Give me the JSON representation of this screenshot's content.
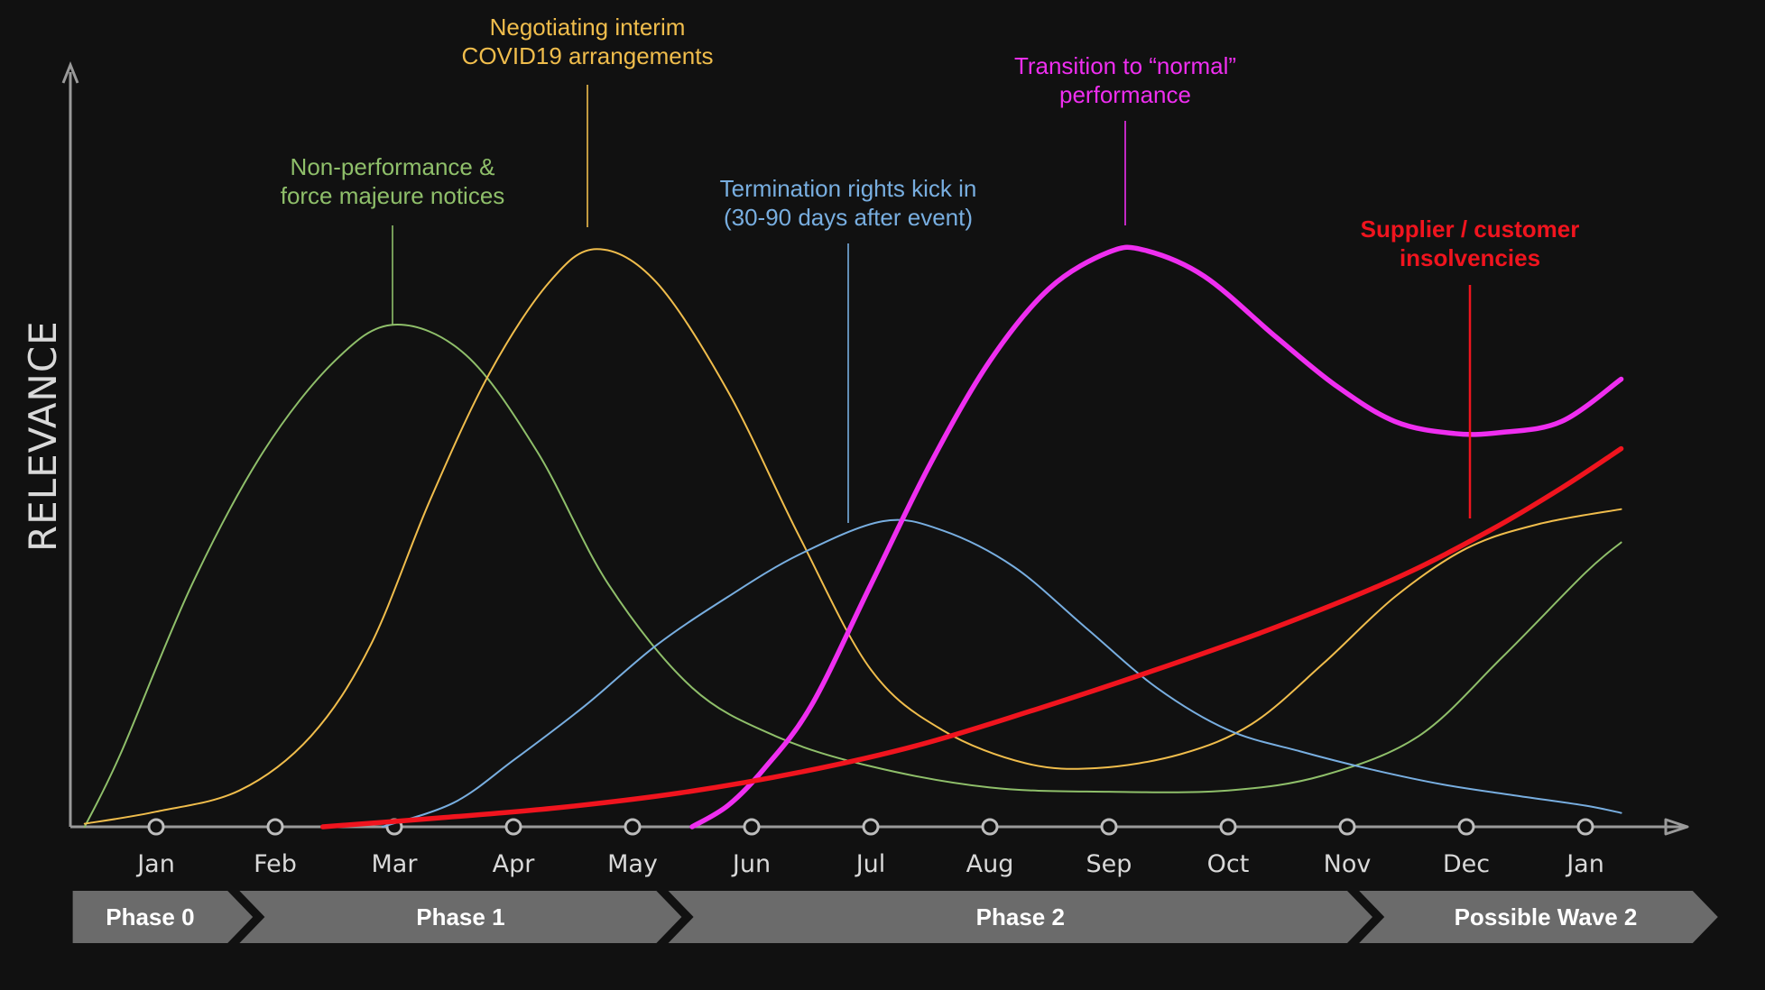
{
  "chart_data": {
    "type": "line",
    "title": "",
    "xlabel": "",
    "ylabel": "RELEVANCE",
    "x_categories": [
      "Jan",
      "Feb",
      "Mar",
      "Apr",
      "May",
      "Jun",
      "Jul",
      "Aug",
      "Sep",
      "Oct",
      "Nov",
      "Dec",
      "Jan"
    ],
    "x_range": [
      0,
      13.5
    ],
    "y_range": [
      0,
      100
    ],
    "grid": false,
    "legend": "none",
    "series": [
      {
        "name": "Non-performance & force majeure notices",
        "color": "#8fbf6a",
        "weight": "thin",
        "points": [
          [
            -0.6,
            0
          ],
          [
            -0.3,
            12
          ],
          [
            0.3,
            40
          ],
          [
            0.9,
            62
          ],
          [
            1.5,
            77
          ],
          [
            2.0,
            83
          ],
          [
            2.6,
            78
          ],
          [
            3.2,
            62
          ],
          [
            3.8,
            40
          ],
          [
            4.5,
            23
          ],
          [
            5.2,
            15
          ],
          [
            6.0,
            10
          ],
          [
            7.0,
            6.5
          ],
          [
            8.0,
            5.8
          ],
          [
            9.0,
            6
          ],
          [
            9.8,
            8.5
          ],
          [
            10.6,
            15
          ],
          [
            11.3,
            28
          ],
          [
            12.0,
            42
          ],
          [
            12.3,
            47
          ]
        ]
      },
      {
        "name": "Negotiating interim COVID19 arrangements",
        "color": "#f0bd4c",
        "weight": "thin",
        "points": [
          [
            -0.6,
            0.5
          ],
          [
            0.0,
            2.5
          ],
          [
            0.7,
            6
          ],
          [
            1.3,
            15
          ],
          [
            1.8,
            30
          ],
          [
            2.3,
            54
          ],
          [
            2.8,
            75
          ],
          [
            3.3,
            90
          ],
          [
            3.7,
            95.5
          ],
          [
            4.2,
            90
          ],
          [
            4.8,
            72
          ],
          [
            5.4,
            48
          ],
          [
            6.0,
            26
          ],
          [
            6.6,
            16
          ],
          [
            7.3,
            10.5
          ],
          [
            7.9,
            9.7
          ],
          [
            8.6,
            12
          ],
          [
            9.2,
            17
          ],
          [
            9.8,
            27
          ],
          [
            10.4,
            38
          ],
          [
            11.0,
            46
          ],
          [
            11.6,
            50
          ],
          [
            12.3,
            52.5
          ]
        ]
      },
      {
        "name": "Termination rights kick in (30-90 days after event)",
        "color": "#78aee0",
        "weight": "thin",
        "points": [
          [
            1.9,
            0
          ],
          [
            2.5,
            4
          ],
          [
            3.0,
            11
          ],
          [
            3.6,
            20
          ],
          [
            4.2,
            30
          ],
          [
            4.8,
            38
          ],
          [
            5.4,
            45
          ],
          [
            6.1,
            50.5
          ],
          [
            6.6,
            49
          ],
          [
            7.2,
            43
          ],
          [
            7.8,
            33
          ],
          [
            8.4,
            23
          ],
          [
            9.0,
            16
          ],
          [
            9.6,
            12.5
          ],
          [
            10.2,
            9.5
          ],
          [
            10.8,
            7
          ],
          [
            11.4,
            5.2
          ],
          [
            12.0,
            3.5
          ],
          [
            12.3,
            2.3
          ]
        ]
      },
      {
        "name": "Transition to “normal” performance",
        "color": "#ef2ef0",
        "weight": "thick",
        "points": [
          [
            4.5,
            0
          ],
          [
            4.8,
            3.5
          ],
          [
            5.1,
            9.5
          ],
          [
            5.5,
            20
          ],
          [
            6.0,
            40
          ],
          [
            6.5,
            60
          ],
          [
            7.0,
            77
          ],
          [
            7.5,
            89
          ],
          [
            8.0,
            95
          ],
          [
            8.3,
            95.3
          ],
          [
            8.8,
            91
          ],
          [
            9.4,
            81
          ],
          [
            9.9,
            73
          ],
          [
            10.4,
            67
          ],
          [
            10.9,
            65
          ],
          [
            11.3,
            65.2
          ],
          [
            11.8,
            67
          ],
          [
            12.3,
            74
          ]
        ]
      },
      {
        "name": "Supplier / customer insolvencies",
        "color": "#f0141e",
        "weight": "thick",
        "points": [
          [
            1.4,
            0
          ],
          [
            2.4,
            1.5
          ],
          [
            3.4,
            3.2
          ],
          [
            4.4,
            5.6
          ],
          [
            5.4,
            9
          ],
          [
            6.4,
            13.5
          ],
          [
            7.4,
            19.5
          ],
          [
            8.4,
            26
          ],
          [
            9.4,
            33
          ],
          [
            10.4,
            41
          ],
          [
            11.2,
            49
          ],
          [
            11.8,
            56
          ],
          [
            12.3,
            62.5
          ]
        ]
      }
    ],
    "annotations": [
      {
        "lines": [
          "Non-performance &",
          "force majeure notices"
        ],
        "color": "#8fbf6a",
        "points_to": "Mar"
      },
      {
        "lines": [
          "Negotiating interim",
          "COVID19 arrangements"
        ],
        "color": "#f0bd4c",
        "points_to": "late Apr"
      },
      {
        "lines": [
          "Termination rights kick in",
          "(30-90 days after event)"
        ],
        "color": "#78aee0",
        "points_to": "Jul"
      },
      {
        "lines": [
          "Transition to “normal”",
          "performance"
        ],
        "color": "#ef2ef0",
        "points_to": "Sep"
      },
      {
        "lines": [
          "Supplier / customer",
          "insolvencies"
        ],
        "color": "#f0141e",
        "points_to": "Dec",
        "bold": true
      }
    ],
    "phases": [
      {
        "label": "Phase 0",
        "from": -0.7,
        "to": 0.6
      },
      {
        "label": "Phase 1",
        "from": 0.7,
        "to": 4.2
      },
      {
        "label": "Phase 2",
        "from": 4.3,
        "to": 10.0
      },
      {
        "label": "Possible Wave 2",
        "from": 10.1,
        "to": 12.9
      }
    ]
  }
}
